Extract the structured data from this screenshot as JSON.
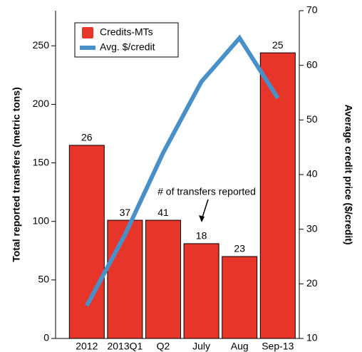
{
  "chart_data": {
    "type": "bar",
    "categories": [
      "2012",
      "2013Q1",
      "Q2",
      "July",
      "Aug",
      "Sep-13"
    ],
    "series": [
      {
        "name": "Credits-MTs",
        "type": "bar",
        "color": "#e8352a",
        "values": [
          165,
          101,
          101,
          81,
          70,
          244
        ],
        "value_labels": [
          "26",
          "37",
          "41",
          "18",
          "23",
          "25"
        ]
      },
      {
        "name": "Avg. $/credit",
        "type": "line",
        "axis": "y2",
        "color": "#4a90c8",
        "values": [
          16,
          29,
          44,
          57,
          65,
          54
        ]
      }
    ],
    "annotation": "# of transfers reported",
    "ylabel": "Total reported transfers (metric tons)",
    "y2label": "Average credit price ($/credit)",
    "ylim": [
      0,
      280
    ],
    "yticks": [
      0,
      50,
      100,
      150,
      200,
      250
    ],
    "y2lim": [
      10,
      70
    ],
    "y2ticks": [
      10,
      20,
      30,
      40,
      50,
      60,
      70
    ]
  }
}
